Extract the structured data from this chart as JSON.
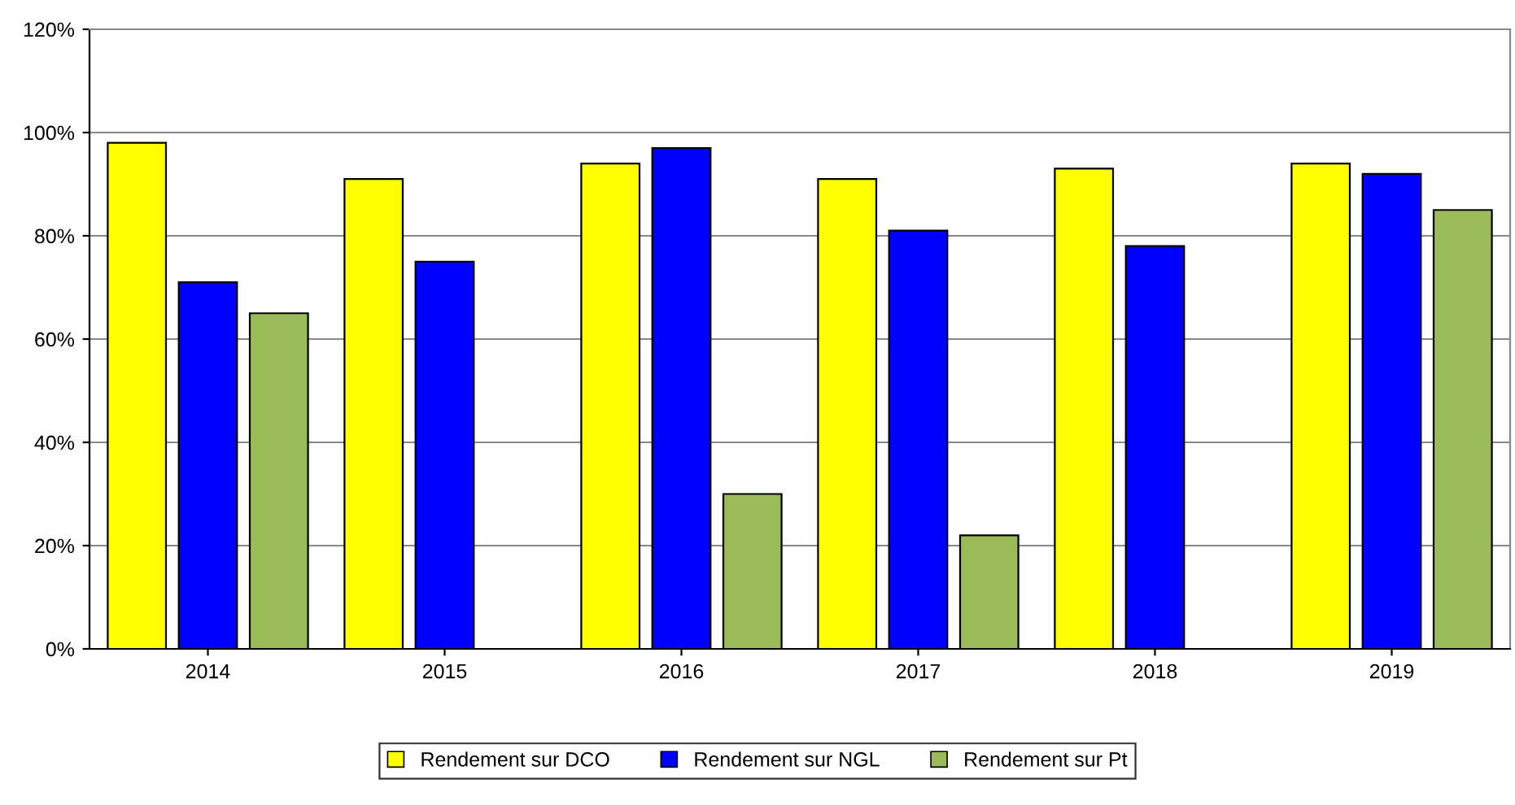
{
  "chart_data": {
    "type": "bar",
    "categories": [
      "2014",
      "2015",
      "2016",
      "2017",
      "2018",
      "2019"
    ],
    "series": [
      {
        "name": "Rendement sur DCO",
        "color": "#ffff00",
        "values": [
          98,
          91,
          94,
          91,
          93,
          94
        ]
      },
      {
        "name": "Rendement sur NGL",
        "color": "#0000ff",
        "values": [
          71,
          75,
          97,
          81,
          78,
          92
        ]
      },
      {
        "name": "Rendement sur Pt",
        "color": "#9bbb59",
        "values": [
          65,
          null,
          30,
          22,
          null,
          85
        ]
      }
    ],
    "ylim": [
      0,
      120
    ],
    "yticks": [
      {
        "value": 0,
        "label": "0%"
      },
      {
        "value": 20,
        "label": "20%"
      },
      {
        "value": 40,
        "label": "40%"
      },
      {
        "value": 60,
        "label": "60%"
      },
      {
        "value": 80,
        "label": "80%"
      },
      {
        "value": 100,
        "label": "100%"
      },
      {
        "value": 120,
        "label": "120%"
      }
    ],
    "grid": "y",
    "legend": "bottom"
  }
}
